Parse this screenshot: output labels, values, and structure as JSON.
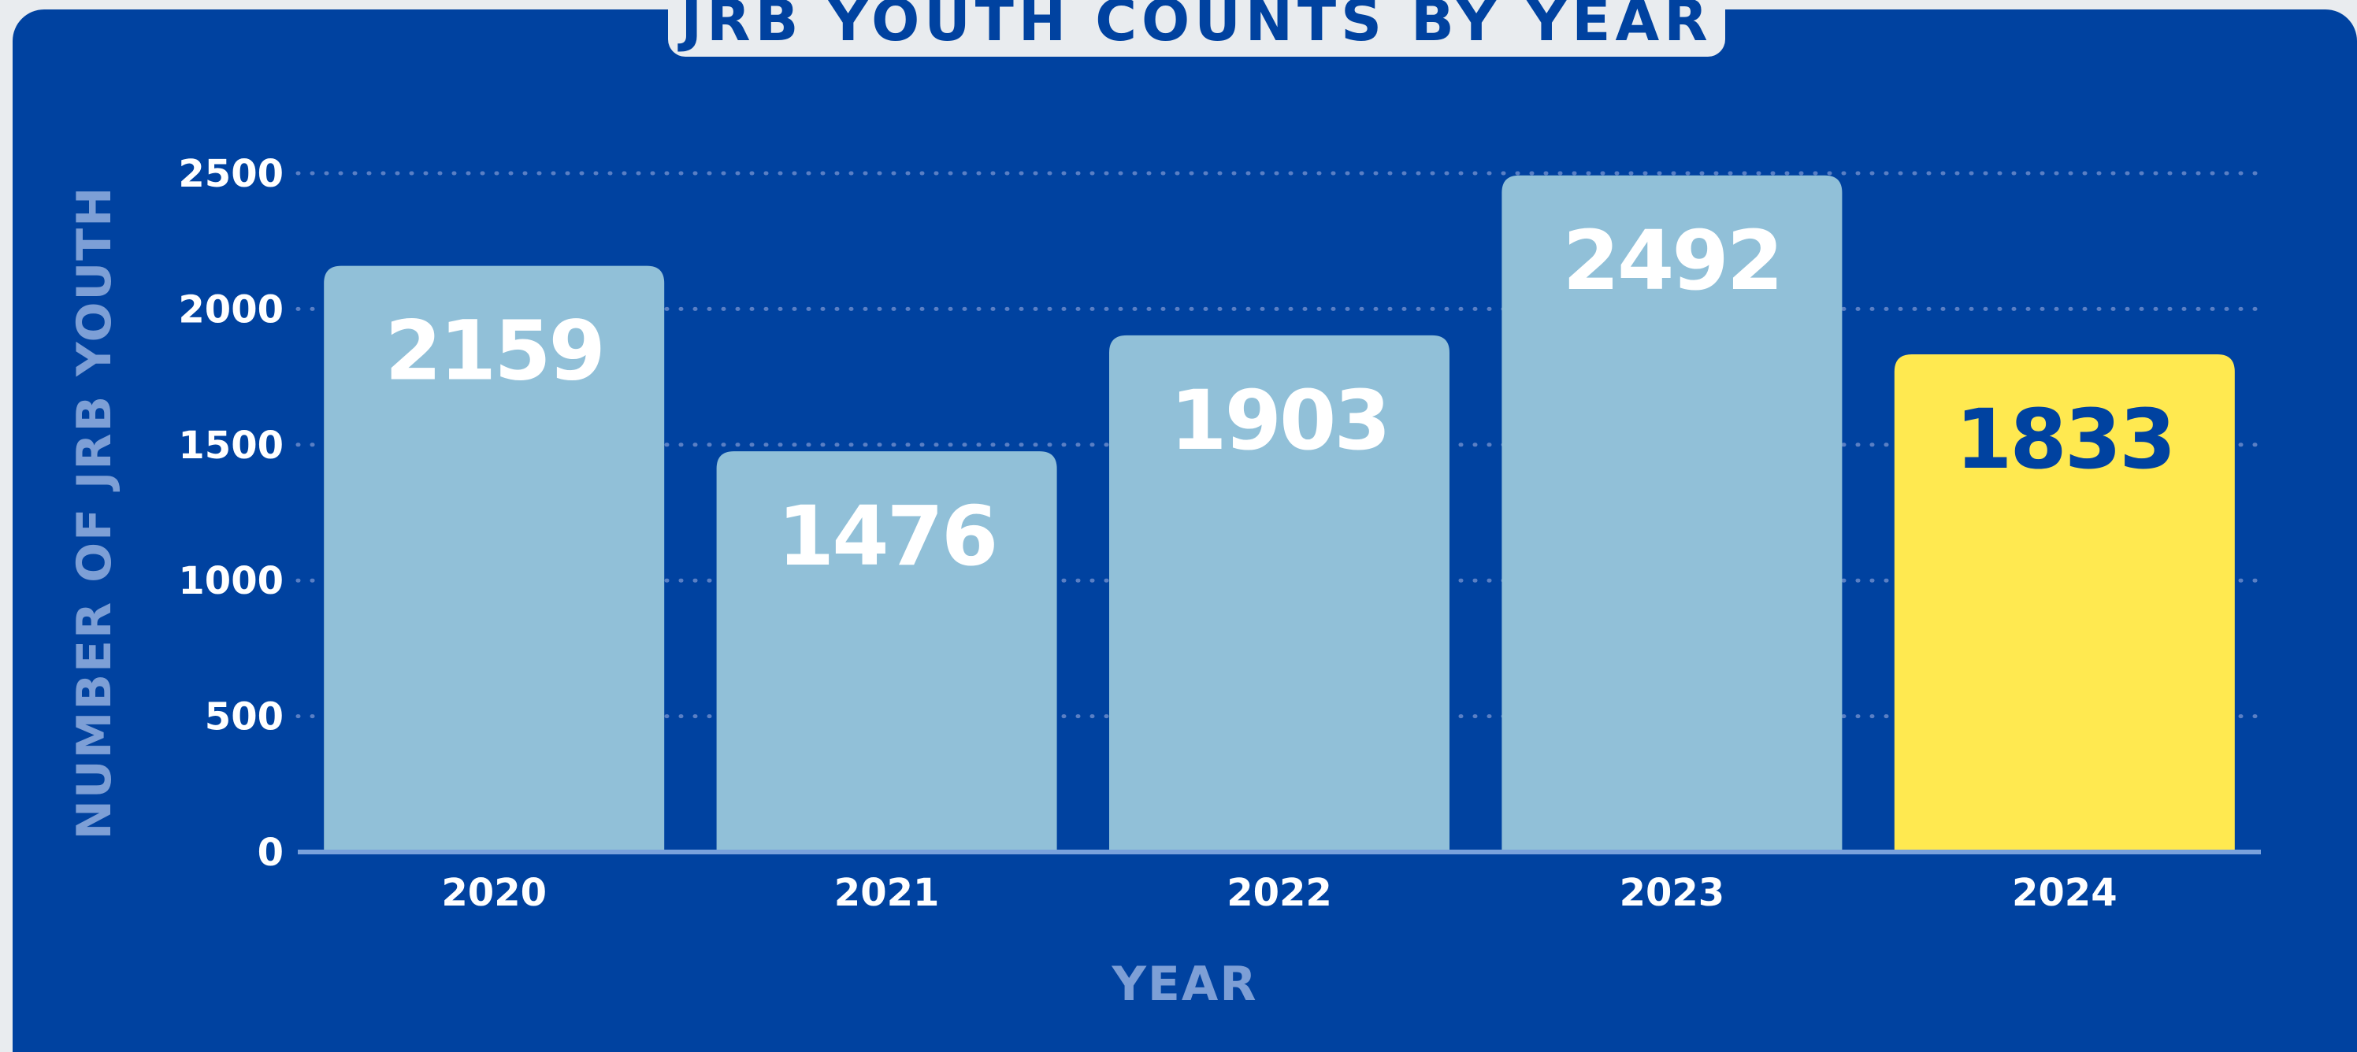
{
  "chart_data": {
    "type": "bar",
    "title": "JRB YOUTH COUNTS BY YEAR",
    "xlabel": "YEAR",
    "ylabel": "NUMBER OF JRB YOUTH",
    "categories": [
      "2020",
      "2021",
      "2022",
      "2023",
      "2024"
    ],
    "values": [
      2159,
      1476,
      1903,
      2492,
      1833
    ],
    "data_labels": [
      "2159",
      "1476",
      "1903",
      "2492",
      "1833"
    ],
    "ylim": [
      0,
      2500
    ],
    "yticks": [
      0,
      500,
      1000,
      1500,
      2000,
      2500
    ],
    "ytick_labels": [
      "0",
      "500",
      "1000",
      "1500",
      "2000",
      "2500"
    ],
    "grid": "dotted horizontal",
    "highlight_index": 4
  },
  "colors": {
    "background": "#0042a0",
    "frame": "#e9ecef",
    "bar": "#91c0d8",
    "bar_highlight": "#ffe950",
    "label_on_bar": "#ffffff",
    "label_on_highlight": "#0042a0",
    "axis_title": "#7d9fd6",
    "gridline": "#5a7fc4",
    "baseline": "#7aa2dc"
  }
}
